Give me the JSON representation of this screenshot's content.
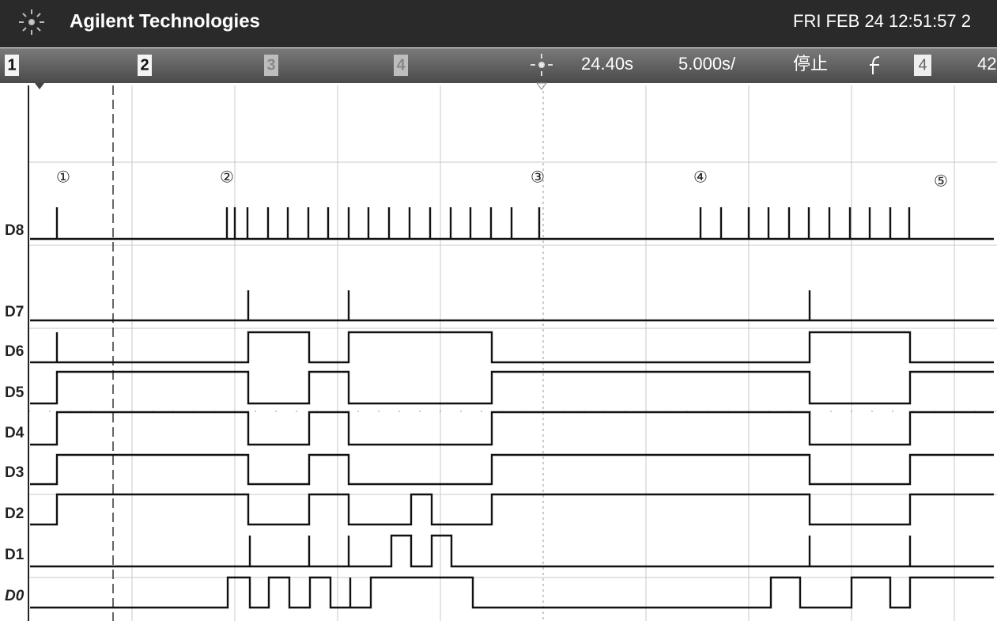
{
  "header": {
    "brand": "Agilent Technologies",
    "datetime": "FRI FEB 24 12:51:57 2"
  },
  "toolbar": {
    "channels": [
      "1",
      "2",
      "3",
      "4"
    ],
    "time_offset": "24.40s",
    "time_scale": "5.000s/",
    "status": "停止",
    "trigger_source": "4",
    "trigger_level": "42"
  },
  "channels": [
    "D8",
    "D7",
    "D6",
    "D5",
    "D4",
    "D3",
    "D2",
    "D1",
    "D0"
  ],
  "markers": [
    "①",
    "②",
    "③",
    "④",
    "⑤"
  ]
}
